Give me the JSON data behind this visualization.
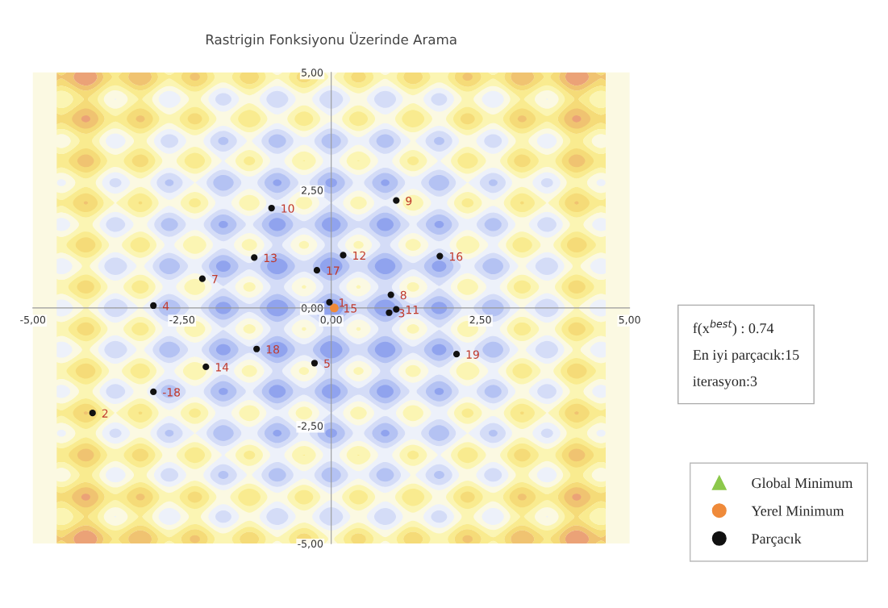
{
  "chart_data": {
    "type": "scatter",
    "title": "Rastrigin Fonksiyonu Üzerinde Arama",
    "xlim": [
      -5,
      5
    ],
    "ylim": [
      -5,
      5
    ],
    "xticks": [
      {
        "value": -5,
        "label": "-5,00"
      },
      {
        "value": -2.5,
        "label": "-2,50"
      },
      {
        "value": 0,
        "label": "0,00"
      },
      {
        "value": 2.5,
        "label": "2,50"
      },
      {
        "value": 5,
        "label": "5,00"
      }
    ],
    "yticks": [
      {
        "value": -5,
        "label": "-5,00"
      },
      {
        "value": -2.5,
        "label": "-2,50"
      },
      {
        "value": 0,
        "label": "0,00"
      },
      {
        "value": 2.5,
        "label": "2,50"
      },
      {
        "value": 5,
        "label": "5,00"
      }
    ],
    "grid": false,
    "legend": "bottom right",
    "series": [
      {
        "name": "Global Minimum",
        "color": "#8cc84b",
        "marker": "triangle"
      },
      {
        "name": "Yerel Minimum",
        "color": "#ef8a3a",
        "marker": "circle",
        "x": [
          0.05
        ],
        "values": [
          0.0
        ]
      },
      {
        "name": "Parçacık",
        "color": "#111111",
        "marker": "circle",
        "x": [
          -0.03,
          -4.0,
          0.97,
          -2.98,
          -0.28,
          -2.16,
          1.0,
          1.09,
          -1.0,
          1.09,
          0.2,
          -1.29,
          -2.1,
          1.82,
          -0.24,
          -1.25,
          2.1,
          -2.98
        ],
        "values": [
          0.12,
          -2.23,
          -0.1,
          0.05,
          -1.17,
          0.62,
          0.28,
          2.28,
          2.12,
          -0.03,
          1.12,
          1.07,
          -1.25,
          1.1,
          0.8,
          -0.87,
          -0.98,
          -1.78
        ]
      }
    ],
    "annotations": [
      "f(x$^{best}$) : 0.74",
      "En iyi parçacık:15",
      "iterasyon:3",
      {
        "text": "1",
        "x": -0.03,
        "y": 0.12
      },
      {
        "text": "2",
        "x": -4.0,
        "y": -2.23
      },
      {
        "text": "3",
        "x": 0.97,
        "y": -0.1
      },
      {
        "text": "4",
        "x": -2.98,
        "y": 0.05
      },
      {
        "text": "5",
        "x": -0.28,
        "y": -1.17
      },
      {
        "text": "7",
        "x": -2.16,
        "y": 0.62
      },
      {
        "text": "8",
        "x": 1.0,
        "y": 0.28
      },
      {
        "text": "9",
        "x": 1.09,
        "y": 2.28
      },
      {
        "text": "10",
        "x": -1.0,
        "y": 2.12
      },
      {
        "text": "11",
        "x": 1.09,
        "y": -0.03
      },
      {
        "text": "12",
        "x": 0.2,
        "y": 1.12
      },
      {
        "text": "13",
        "x": -1.29,
        "y": 1.07
      },
      {
        "text": "14",
        "x": -2.1,
        "y": -1.25
      },
      {
        "text": "15",
        "x": 0.05,
        "y": 0.0
      },
      {
        "text": "16",
        "x": 1.82,
        "y": 1.1
      },
      {
        "text": "17",
        "x": -0.24,
        "y": 0.8
      },
      {
        "text": "18",
        "x": -1.25,
        "y": -0.87
      },
      {
        "text": "19",
        "x": 2.1,
        "y": -0.98
      },
      {
        "text": "-18",
        "x": -2.98,
        "y": -1.78
      }
    ]
  }
}
